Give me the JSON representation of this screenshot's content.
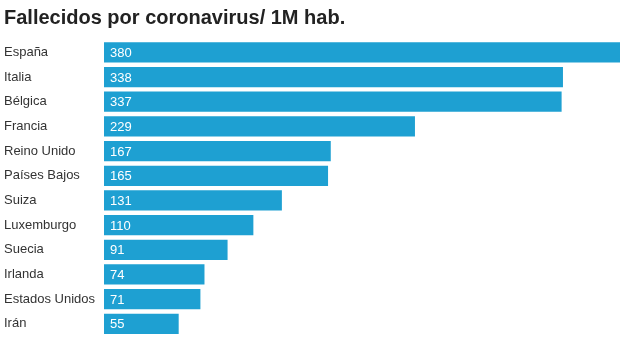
{
  "chart_data": {
    "type": "bar",
    "orientation": "horizontal",
    "title": "Fallecidos por coronavirus/ 1M hab.",
    "categories": [
      "España",
      "Italia",
      "Bélgica",
      "Francia",
      "Reino Unido",
      "Países Bajos",
      "Suiza",
      "Luxemburgo",
      "Suecia",
      "Irlanda",
      "Estados Unidos",
      "Irán"
    ],
    "values": [
      380,
      338,
      337,
      229,
      167,
      165,
      131,
      110,
      91,
      74,
      71,
      55
    ],
    "color": "#1ea0d2",
    "xlim": [
      0,
      380
    ],
    "data_labels": true,
    "tick_labels": "y",
    "grid": false
  }
}
